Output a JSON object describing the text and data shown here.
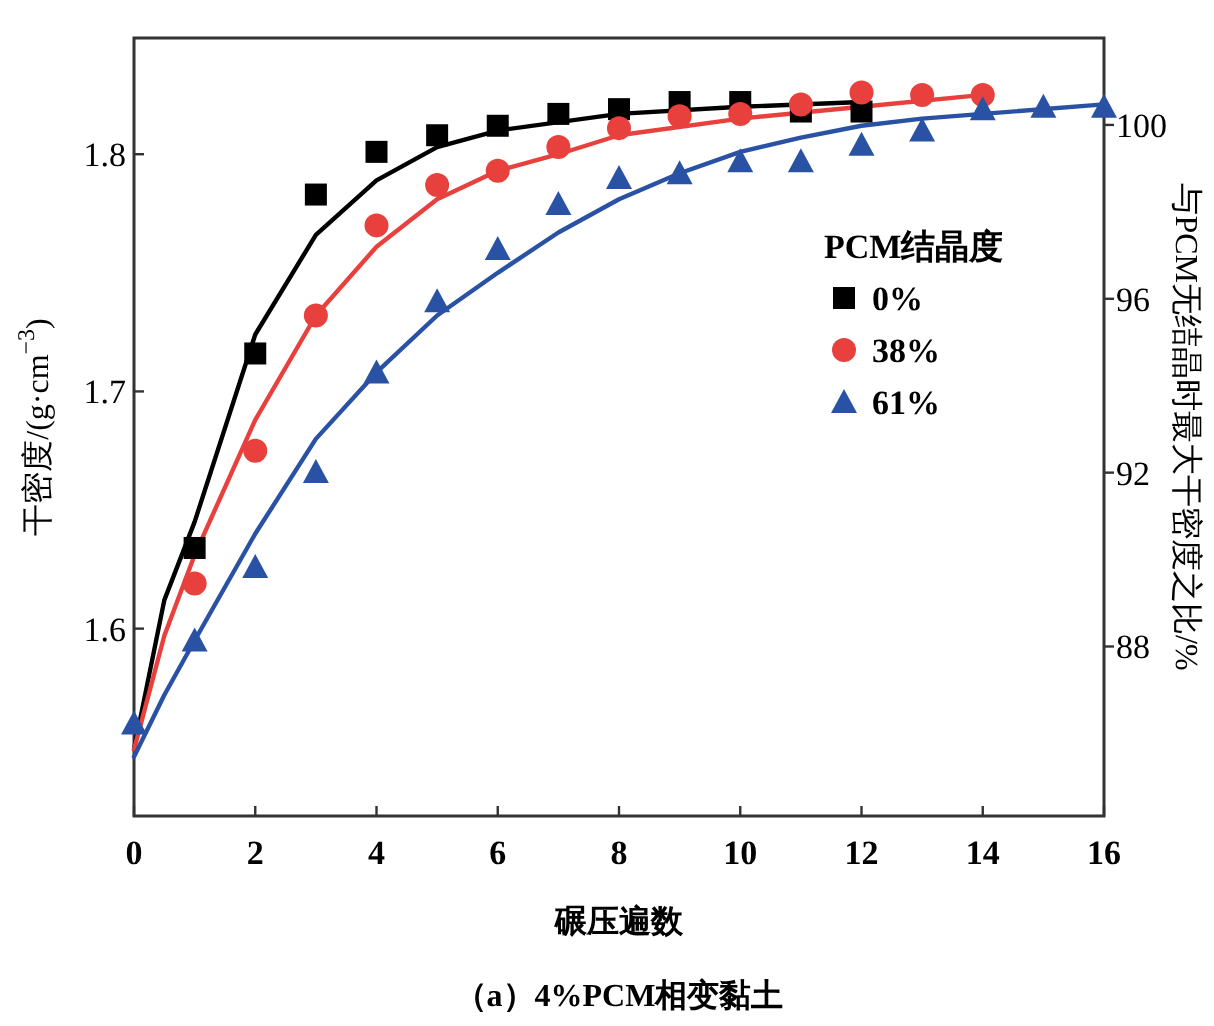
{
  "chart_data": {
    "type": "scatter",
    "title": "（a）4%PCM相变黏土",
    "xlabel": "碾压遍数",
    "ylabel": "干密度/(g·cm$^{−3}$)",
    "y2label": "与PCM无结晶时最大干密度之比/%",
    "legend_title": "PCM结晶度",
    "legend": "right",
    "xlim": [
      0,
      16
    ],
    "xticks": [
      0,
      2,
      4,
      6,
      8,
      10,
      12,
      14,
      16
    ],
    "ylim": [
      1.521,
      1.849
    ],
    "yticks": [
      1.6,
      1.7,
      1.8
    ],
    "y2lim": [
      84.1,
      102
    ],
    "y2ticks": [
      88,
      92,
      96,
      100
    ],
    "series": [
      {
        "name": "0%",
        "marker": "square",
        "color": "#000000",
        "x": [
          1,
          2,
          3,
          4,
          5,
          6,
          7,
          8,
          9,
          10,
          11,
          12
        ],
        "values": [
          1.634,
          1.716,
          1.783,
          1.801,
          1.808,
          1.812,
          1.817,
          1.819,
          1.822,
          1.822,
          1.818,
          1.818
        ]
      },
      {
        "name": "38%",
        "marker": "circle",
        "color": "#e8403c",
        "x": [
          1,
          2,
          3,
          4,
          5,
          6,
          7,
          8,
          9,
          10,
          11,
          12,
          13,
          14
        ],
        "values": [
          1.619,
          1.675,
          1.732,
          1.77,
          1.787,
          1.793,
          1.803,
          1.811,
          1.816,
          1.817,
          1.821,
          1.826,
          1.825,
          1.825
        ]
      },
      {
        "name": "61%",
        "marker": "triangle",
        "color": "#2a52a4",
        "x": [
          0,
          1,
          2,
          3,
          4,
          5,
          6,
          7,
          8,
          9,
          10,
          11,
          12,
          13,
          14,
          15,
          16
        ],
        "values": [
          1.56,
          1.595,
          1.626,
          1.666,
          1.708,
          1.738,
          1.76,
          1.779,
          1.79,
          1.792,
          1.797,
          1.797,
          1.804,
          1.81,
          1.819,
          1.82,
          1.82
        ]
      },
      {
        "type": "line",
        "color": "#000000",
        "x": [
          0,
          0.5,
          1,
          2,
          3,
          4,
          5,
          6,
          8,
          10,
          12
        ],
        "values": [
          1.549,
          1.612,
          1.645,
          1.724,
          1.766,
          1.789,
          1.803,
          1.81,
          1.817,
          1.82,
          1.822
        ]
      },
      {
        "type": "line",
        "color": "#e8403c",
        "x": [
          0,
          0.5,
          1,
          2,
          3,
          4,
          5,
          6,
          7,
          8,
          10,
          12,
          14
        ],
        "values": [
          1.549,
          1.597,
          1.631,
          1.688,
          1.732,
          1.761,
          1.781,
          1.793,
          1.8,
          1.808,
          1.815,
          1.82,
          1.825
        ]
      },
      {
        "type": "line",
        "color": "#2a52a4",
        "x": [
          0,
          0.5,
          1,
          2,
          3,
          4,
          5,
          6,
          7,
          8,
          9,
          10,
          11,
          12,
          13,
          14,
          16
        ],
        "values": [
          1.546,
          1.572,
          1.595,
          1.64,
          1.68,
          1.708,
          1.732,
          1.75,
          1.767,
          1.781,
          1.792,
          1.801,
          1.807,
          1.812,
          1.815,
          1.817,
          1.821
        ]
      }
    ]
  }
}
